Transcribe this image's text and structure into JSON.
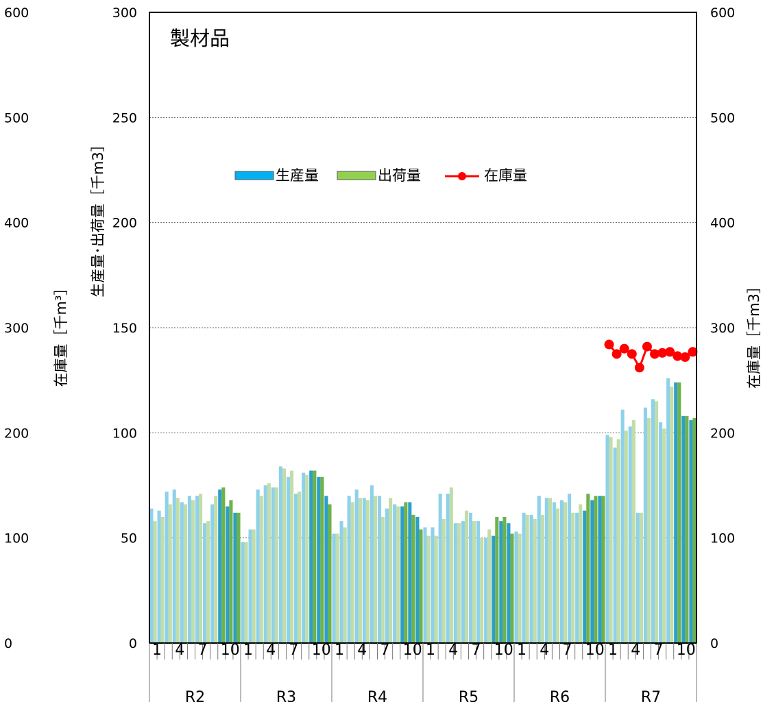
{
  "chart_data": {
    "type": "bar",
    "title": "製材品",
    "y_left_outer_label": "在庫量［千m³］",
    "y_left_inner_label": "生産量･出荷量［千m3］",
    "y_right_label": "在庫量［千m3］",
    "ylim": [
      0,
      300
    ],
    "y2lim": [
      0,
      600
    ],
    "y_ticks": [
      "0",
      "50",
      "100",
      "150",
      "200",
      "250",
      "300"
    ],
    "y2_ticks": [
      "0",
      "100",
      "200",
      "300",
      "400",
      "500",
      "600"
    ],
    "grid": true,
    "legend_position": "upper-center",
    "month_ticks": [
      "1",
      "4",
      "7",
      "10"
    ],
    "year_groups": [
      "R2",
      "R3",
      "R4",
      "R5",
      "R6",
      "R7"
    ],
    "months_per_year": 12,
    "series": [
      {
        "name": "生産量",
        "kind": "bar",
        "color": "#00B0F0",
        "values": [
          [
            64,
            63,
            72,
            73,
            67,
            70,
            70,
            57,
            66,
            73,
            65,
            62
          ],
          [
            48,
            54,
            73,
            75,
            74,
            84,
            79,
            71,
            81,
            82,
            79,
            70
          ],
          [
            52,
            58,
            70,
            73,
            69,
            75,
            70,
            64,
            66,
            65,
            67,
            60
          ],
          [
            55,
            55,
            71,
            71,
            57,
            58,
            62,
            58,
            50,
            51,
            58,
            57
          ],
          [
            53,
            62,
            61,
            70,
            69,
            67,
            68,
            71,
            62,
            63,
            68,
            70
          ],
          [
            99,
            93,
            111,
            103,
            62,
            112,
            116,
            105,
            126,
            124,
            108,
            106
          ]
        ]
      },
      {
        "name": "出荷量",
        "kind": "bar",
        "color": "#92D050",
        "values": [
          [
            58,
            60,
            66,
            69,
            66,
            68,
            71,
            58,
            70,
            74,
            68,
            62
          ],
          [
            48,
            54,
            70,
            76,
            74,
            83,
            82,
            72,
            80,
            82,
            79,
            66
          ],
          [
            52,
            55,
            67,
            69,
            68,
            70,
            60,
            69,
            65,
            67,
            61,
            54
          ],
          [
            51,
            51,
            59,
            74,
            57,
            63,
            58,
            50,
            54,
            60,
            60,
            52
          ],
          [
            52,
            61,
            59,
            61,
            69,
            64,
            67,
            62,
            66,
            71,
            70,
            70
          ],
          [
            98,
            97,
            101,
            106,
            62,
            107,
            115,
            102,
            122,
            124,
            108,
            107
          ]
        ]
      },
      {
        "name": "在庫量",
        "kind": "line",
        "axis": "right",
        "color": "#FF0000",
        "year": "R7",
        "values": [
          284,
          275,
          280,
          275,
          262,
          282,
          275,
          276,
          277,
          273,
          272,
          277
        ]
      }
    ]
  }
}
